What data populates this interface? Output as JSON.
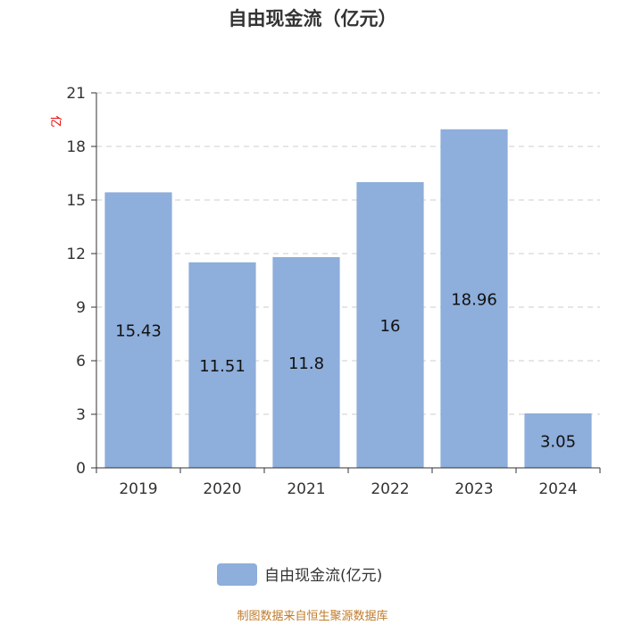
{
  "chart_data": {
    "type": "bar",
    "title": "自由现金流（亿元）",
    "unit_label": "亿",
    "categories": [
      "2019",
      "2020",
      "2021",
      "2022",
      "2023",
      "2024"
    ],
    "series": [
      {
        "name": "自由现金流(亿元)",
        "values": [
          15.43,
          11.51,
          11.8,
          16,
          18.96,
          3.05
        ]
      }
    ],
    "data_labels": [
      "15.43",
      "11.51",
      "11.8",
      "16",
      "18.96",
      "3.05"
    ],
    "ylim": [
      0,
      21
    ],
    "yticks": [
      0,
      3,
      6,
      9,
      12,
      15,
      18,
      21
    ],
    "grid": true,
    "legend": "bottom-center"
  },
  "source": "制图数据来自恒生聚源数据库",
  "colors": {
    "bar": "#8eaedb",
    "axis": "#333333",
    "grid": "#cccccc",
    "unit": "#e60000",
    "source": "#c07b2a"
  }
}
